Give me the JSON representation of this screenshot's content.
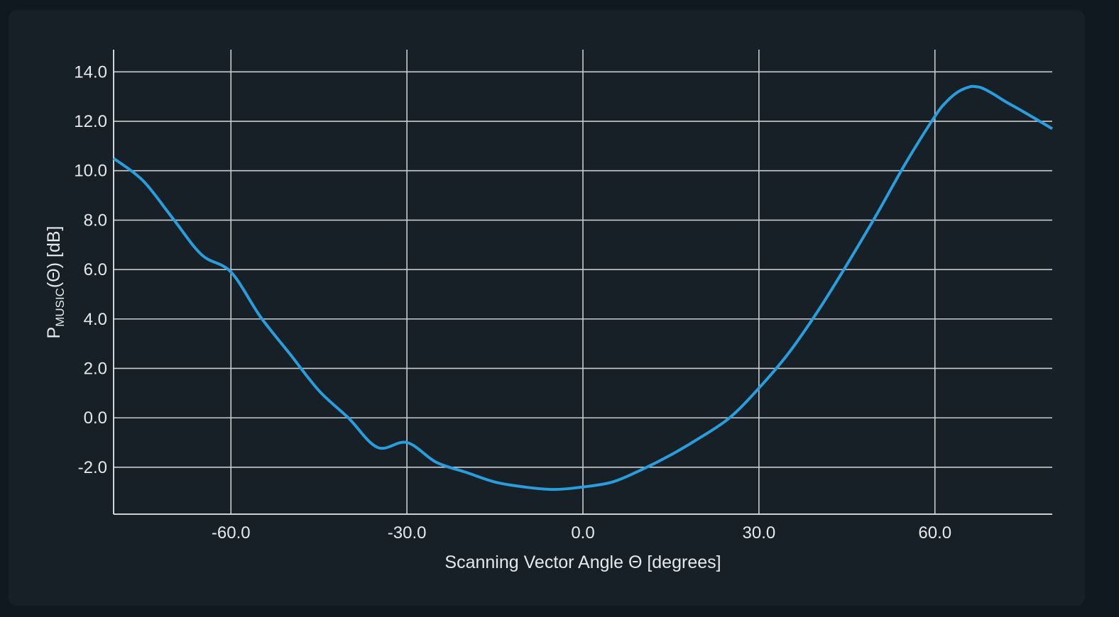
{
  "colors": {
    "background": "#101820",
    "panel": "#172027",
    "grid": "#c8ccd0",
    "text": "#e6e9ec",
    "series": "#2a9ddc"
  },
  "chart_data": {
    "type": "line",
    "xlabel": "Scanning Vector Angle Θ [degrees]",
    "ylabel": {
      "main": "P",
      "subscript": "MUSIC",
      "suffix": "(Θ) [dB]"
    },
    "xlim": [
      -80,
      80
    ],
    "ylim": [
      -3.9,
      14.9
    ],
    "x_ticks": [
      -60,
      -30,
      0,
      30,
      60
    ],
    "x_tick_labels": [
      "-60.0",
      "-30.0",
      "0.0",
      "30.0",
      "60.0"
    ],
    "y_ticks": [
      -2,
      0,
      2,
      4,
      6,
      8,
      10,
      12,
      14
    ],
    "y_tick_labels": [
      "-2.0",
      "0.0",
      "2.0",
      "4.0",
      "6.0",
      "8.0",
      "10.0",
      "12.0",
      "14.0"
    ],
    "grid": true,
    "series": [
      {
        "color": "#2a9ddc",
        "x": [
          -80,
          -75,
          -70,
          -65,
          -60,
          -55,
          -50,
          -45,
          -40,
          -35,
          -30,
          -25,
          -20,
          -15,
          -10,
          -5,
          0,
          5,
          10,
          15,
          20,
          25,
          30,
          35,
          40,
          45,
          50,
          55,
          60,
          62,
          64,
          66,
          67,
          68,
          70,
          72,
          75,
          80
        ],
        "y": [
          10.5,
          9.6,
          8.1,
          6.6,
          5.9,
          4.1,
          2.6,
          1.1,
          0.0,
          -1.2,
          -1.0,
          -1.8,
          -2.2,
          -2.6,
          -2.8,
          -2.9,
          -2.8,
          -2.6,
          -2.1,
          -1.5,
          -0.8,
          0.0,
          1.2,
          2.6,
          4.3,
          6.2,
          8.2,
          10.3,
          12.2,
          12.8,
          13.2,
          13.4,
          13.4,
          13.35,
          13.1,
          12.8,
          12.4,
          11.7
        ]
      }
    ]
  }
}
